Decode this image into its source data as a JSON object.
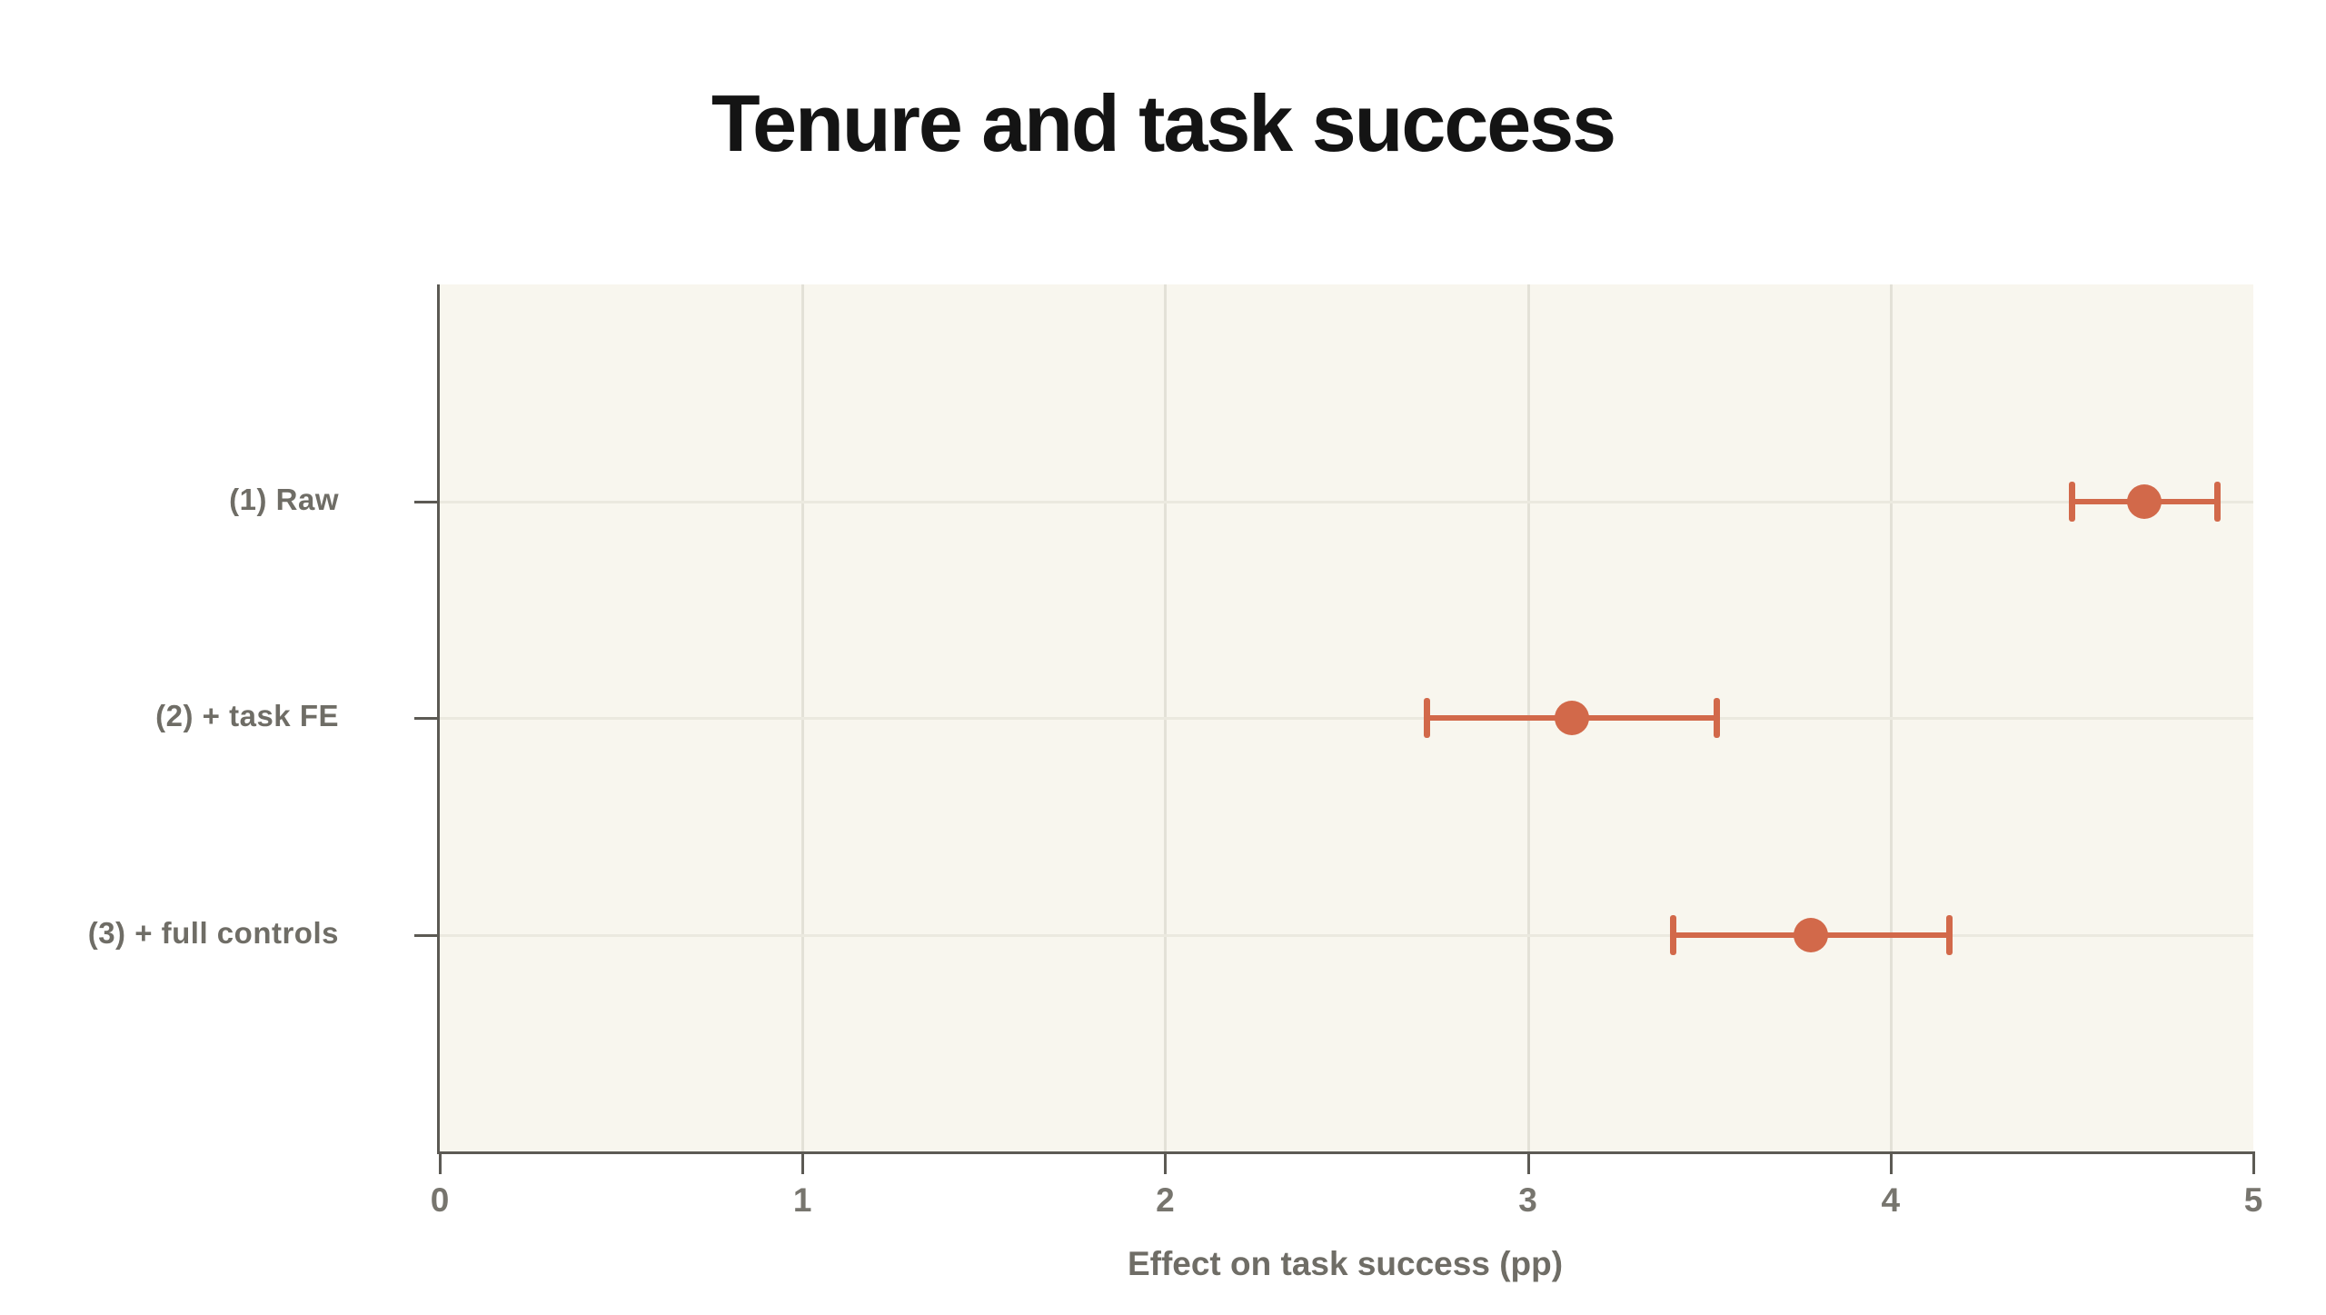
{
  "page": {
    "background": "#ffffff"
  },
  "chart_data": {
    "type": "scatter",
    "variant": "coefficient-dot-whisker",
    "title": "Tenure and task success",
    "xlabel": "Effect on task success (pp)",
    "ylabel": "",
    "categories": [
      "(1) Raw",
      "(2) + task FE",
      "(3) + full controls"
    ],
    "estimates": [
      4.7,
      3.12,
      3.78
    ],
    "ci_low": [
      4.5,
      2.72,
      3.4
    ],
    "ci_high": [
      4.9,
      3.52,
      4.16
    ],
    "xlim": [
      0,
      5
    ],
    "xticks": [
      0,
      1,
      2,
      3,
      4,
      5
    ],
    "xtick_labels": [
      "0",
      "1",
      "2",
      "3",
      "4",
      "5"
    ],
    "grid": true,
    "legend_position": "none",
    "colors": {
      "marker": "#d2694a",
      "plot_background": "#f8f6ee",
      "spine": "#5c5a54",
      "vertical_grid": "#e3e1d7",
      "horizontal_grid": "#ebe9df",
      "title_text": "#141414",
      "axis_text": "#6f6d66"
    }
  }
}
